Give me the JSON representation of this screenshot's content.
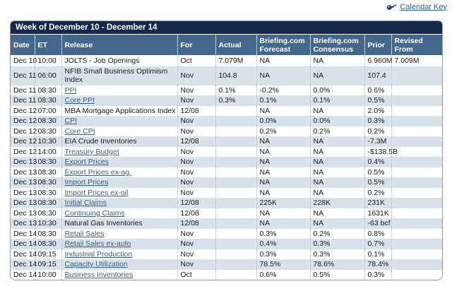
{
  "calendar_key": {
    "label": "Calendar Key",
    "icon": "key-icon"
  },
  "table": {
    "title": "Week of December 10 - December 14",
    "columns": [
      "Date",
      "ET",
      "Release",
      "For",
      "Actual",
      "Briefing.com Forecast",
      "Briefing.com Consensus",
      "Prior",
      "Revised From"
    ],
    "rows": [
      {
        "date": "Dec 10",
        "et": "10:00",
        "release": "JOLTS - Job Openings",
        "is_link": false,
        "for": "Oct",
        "actual": "7.079M",
        "forecast": "NA",
        "consensus": "NA",
        "prior": "6.960M",
        "revised": "7.009M"
      },
      {
        "date": "Dec 11",
        "et": "06:00",
        "release": "NFIB Small Business Optimism Index",
        "is_link": false,
        "for": "Nov",
        "actual": "104.8",
        "forecast": "NA",
        "consensus": "NA",
        "prior": "107.4",
        "revised": ""
      },
      {
        "date": "Dec 11",
        "et": "08:30",
        "release": "PPI",
        "is_link": true,
        "for": "Nov",
        "actual": "0.1%",
        "forecast": "-0.2%",
        "consensus": "0.0%",
        "prior": "0.6%",
        "revised": ""
      },
      {
        "date": "Dec 11",
        "et": "08:30",
        "release": "Core PPI",
        "is_link": true,
        "for": "Nov",
        "actual": "0.3%",
        "forecast": "0.1%",
        "consensus": "0.1%",
        "prior": "0.5%",
        "revised": ""
      },
      {
        "date": "Dec 12",
        "et": "07:00",
        "release": "MBA Mortgage Applications Index",
        "is_link": false,
        "for": "12/08",
        "actual": "",
        "forecast": "NA",
        "consensus": "NA",
        "prior": "2.0%",
        "revised": ""
      },
      {
        "date": "Dec 12",
        "et": "08:30",
        "release": "CPI",
        "is_link": true,
        "for": "Nov",
        "actual": "",
        "forecast": "0.0%",
        "consensus": "0.0%",
        "prior": "0.3%",
        "revised": ""
      },
      {
        "date": "Dec 12",
        "et": "08:30",
        "release": "Core CPI",
        "is_link": true,
        "for": "Nov",
        "actual": "",
        "forecast": "0.2%",
        "consensus": "0.2%",
        "prior": "0.2%",
        "revised": ""
      },
      {
        "date": "Dec 12",
        "et": "10:30",
        "release": "EIA Crude Inventories",
        "is_link": false,
        "for": "12/08",
        "actual": "",
        "forecast": "NA",
        "consensus": "NA",
        "prior": "-7.3M",
        "revised": ""
      },
      {
        "date": "Dec 12",
        "et": "14:00",
        "release": "Treasury Budget",
        "is_link": true,
        "for": "Nov",
        "actual": "",
        "forecast": "NA",
        "consensus": "NA",
        "prior": "-$138.5B",
        "revised": ""
      },
      {
        "date": "Dec 13",
        "et": "08:30",
        "release": "Export Prices",
        "is_link": true,
        "for": "Nov",
        "actual": "",
        "forecast": "NA",
        "consensus": "NA",
        "prior": "0.4%",
        "revised": ""
      },
      {
        "date": "Dec 13",
        "et": "08:30",
        "release": "Export Prices ex-ag.",
        "is_link": true,
        "for": "Nov",
        "actual": "",
        "forecast": "NA",
        "consensus": "NA",
        "prior": "0.5%",
        "revised": ""
      },
      {
        "date": "Dec 13",
        "et": "08:30",
        "release": "Import Prices",
        "is_link": true,
        "for": "Nov",
        "actual": "",
        "forecast": "NA",
        "consensus": "NA",
        "prior": "0.5%",
        "revised": ""
      },
      {
        "date": "Dec 13",
        "et": "08:30",
        "release": "Import Prices ex-oil",
        "is_link": true,
        "for": "Nov",
        "actual": "",
        "forecast": "NA",
        "consensus": "NA",
        "prior": "0.2%",
        "revised": ""
      },
      {
        "date": "Dec 13",
        "et": "08:30",
        "release": "Initial Claims",
        "is_link": true,
        "for": "12/08",
        "actual": "",
        "forecast": "225K",
        "consensus": "228K",
        "prior": "231K",
        "revised": ""
      },
      {
        "date": "Dec 13",
        "et": "08:30",
        "release": "Continuing Claims",
        "is_link": true,
        "for": "12/08",
        "actual": "",
        "forecast": "NA",
        "consensus": "NA",
        "prior": "1631K",
        "revised": ""
      },
      {
        "date": "Dec 13",
        "et": "10:30",
        "release": "Natural Gas Inventories",
        "is_link": false,
        "for": "12/08",
        "actual": "",
        "forecast": "NA",
        "consensus": "NA",
        "prior": "-63 bcf",
        "revised": ""
      },
      {
        "date": "Dec 14",
        "et": "08:30",
        "release": "Retail Sales",
        "is_link": true,
        "for": "Nov",
        "actual": "",
        "forecast": "0.3%",
        "consensus": "0.2%",
        "prior": "0.8%",
        "revised": ""
      },
      {
        "date": "Dec 14",
        "et": "08:30",
        "release": "Retail Sales ex-auto",
        "is_link": true,
        "for": "Nov",
        "actual": "",
        "forecast": "0.4%",
        "consensus": "0.3%",
        "prior": "0.7%",
        "revised": ""
      },
      {
        "date": "Dec 14",
        "et": "09:15",
        "release": "Industrial Production",
        "is_link": true,
        "for": "Nov",
        "actual": "",
        "forecast": "0.3%",
        "consensus": "0.3%",
        "prior": "0.1%",
        "revised": ""
      },
      {
        "date": "Dec 14",
        "et": "09:15",
        "release": "Capacity Utilization",
        "is_link": true,
        "for": "Nov",
        "actual": "",
        "forecast": "78.5%",
        "consensus": "78.6%",
        "prior": "78.4%",
        "revised": ""
      },
      {
        "date": "Dec 14",
        "et": "10:00",
        "release": "Business Inventories",
        "is_link": true,
        "for": "Oct",
        "actual": "",
        "forecast": "0.6%",
        "consensus": "0.5%",
        "prior": "0.3%",
        "revised": ""
      }
    ]
  },
  "colors": {
    "title_bar_bg": "#13294b",
    "header_bg": "#44678c",
    "alt_row_bg": "#d9e1ea",
    "release_link": "#3c5f7e",
    "calendar_key_link": "#2d5fa3",
    "table_border": "#999999",
    "text": "#1a1a1a"
  }
}
